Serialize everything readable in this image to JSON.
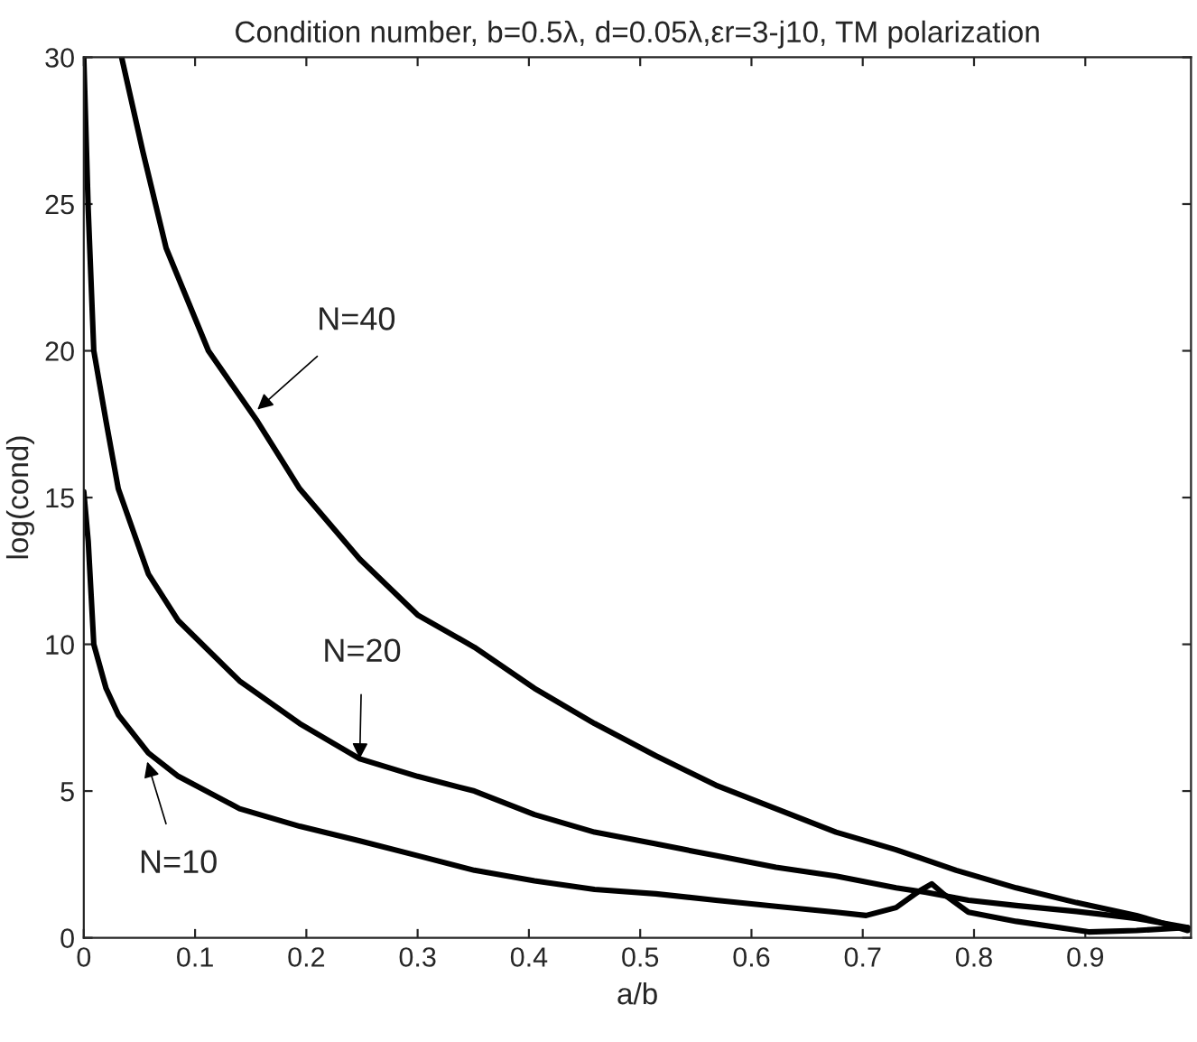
{
  "chart_data": {
    "type": "line",
    "title": "Condition number, b=0.5λ, d=0.05λ,εr=3-j10, TM polarization",
    "xlabel": "a/b",
    "ylabel": "log(cond)",
    "xlim": [
      0,
      0.995
    ],
    "ylim": [
      0,
      30
    ],
    "xticks": [
      0,
      0.1,
      0.2,
      0.3,
      0.4,
      0.5,
      0.6,
      0.7,
      0.8,
      0.9
    ],
    "yticks": [
      0,
      5,
      10,
      15,
      20,
      25,
      30
    ],
    "grid": false,
    "series": [
      {
        "color": "#000000",
        "x": [
          0,
          0.004,
          0.009,
          0.02,
          0.031,
          0.058,
          0.085,
          0.14,
          0.194,
          0.248,
          0.3,
          0.351,
          0.405,
          0.459,
          0.514,
          0.568,
          0.622,
          0.676,
          0.703,
          0.73,
          0.751,
          0.762,
          0.773,
          0.795,
          0.838,
          0.903,
          0.946,
          0.992
        ],
        "values": [
          15.2,
          13.5,
          10.0,
          8.5,
          7.6,
          6.3,
          5.5,
          4.4,
          3.8,
          3.3,
          2.8,
          2.3,
          1.94,
          1.65,
          1.5,
          1.28,
          1.07,
          0.87,
          0.76,
          1.03,
          1.6,
          1.84,
          1.48,
          0.87,
          0.56,
          0.2,
          0.25,
          0.35
        ]
      },
      {
        "color": "#000000",
        "x": [
          0,
          0.004,
          0.009,
          0.02,
          0.031,
          0.058,
          0.085,
          0.14,
          0.194,
          0.248,
          0.3,
          0.351,
          0.405,
          0.459,
          0.514,
          0.568,
          0.622,
          0.676,
          0.73,
          0.757,
          0.795,
          0.838,
          0.892,
          0.946,
          0.992
        ],
        "values": [
          30,
          24.8,
          20.0,
          17.6,
          15.3,
          12.4,
          10.8,
          8.75,
          7.3,
          6.1,
          5.5,
          5.0,
          4.2,
          3.6,
          3.2,
          2.8,
          2.4,
          2.1,
          1.7,
          1.55,
          1.28,
          1.1,
          0.9,
          0.66,
          0.35
        ]
      },
      {
        "color": "#000000",
        "x": [
          0.034,
          0.053,
          0.074,
          0.112,
          0.156,
          0.194,
          0.248,
          0.3,
          0.351,
          0.405,
          0.459,
          0.514,
          0.568,
          0.622,
          0.676,
          0.73,
          0.784,
          0.838,
          0.892,
          0.946,
          0.992
        ],
        "values": [
          30,
          26.8,
          23.5,
          20.0,
          17.6,
          15.3,
          12.9,
          11.0,
          9.9,
          8.5,
          7.3,
          6.2,
          5.2,
          4.4,
          3.6,
          3.0,
          2.3,
          1.7,
          1.2,
          0.76,
          0.25
        ]
      }
    ],
    "line_style": "solid",
    "marker": "none",
    "annotations": [
      {
        "text": "N=40",
        "x": 0.156,
        "y": 18.0
      },
      {
        "text": "N=20",
        "x": 0.248,
        "y": 6.1
      },
      {
        "text": "N=10",
        "x": 0.057,
        "y": 6.0
      }
    ]
  }
}
